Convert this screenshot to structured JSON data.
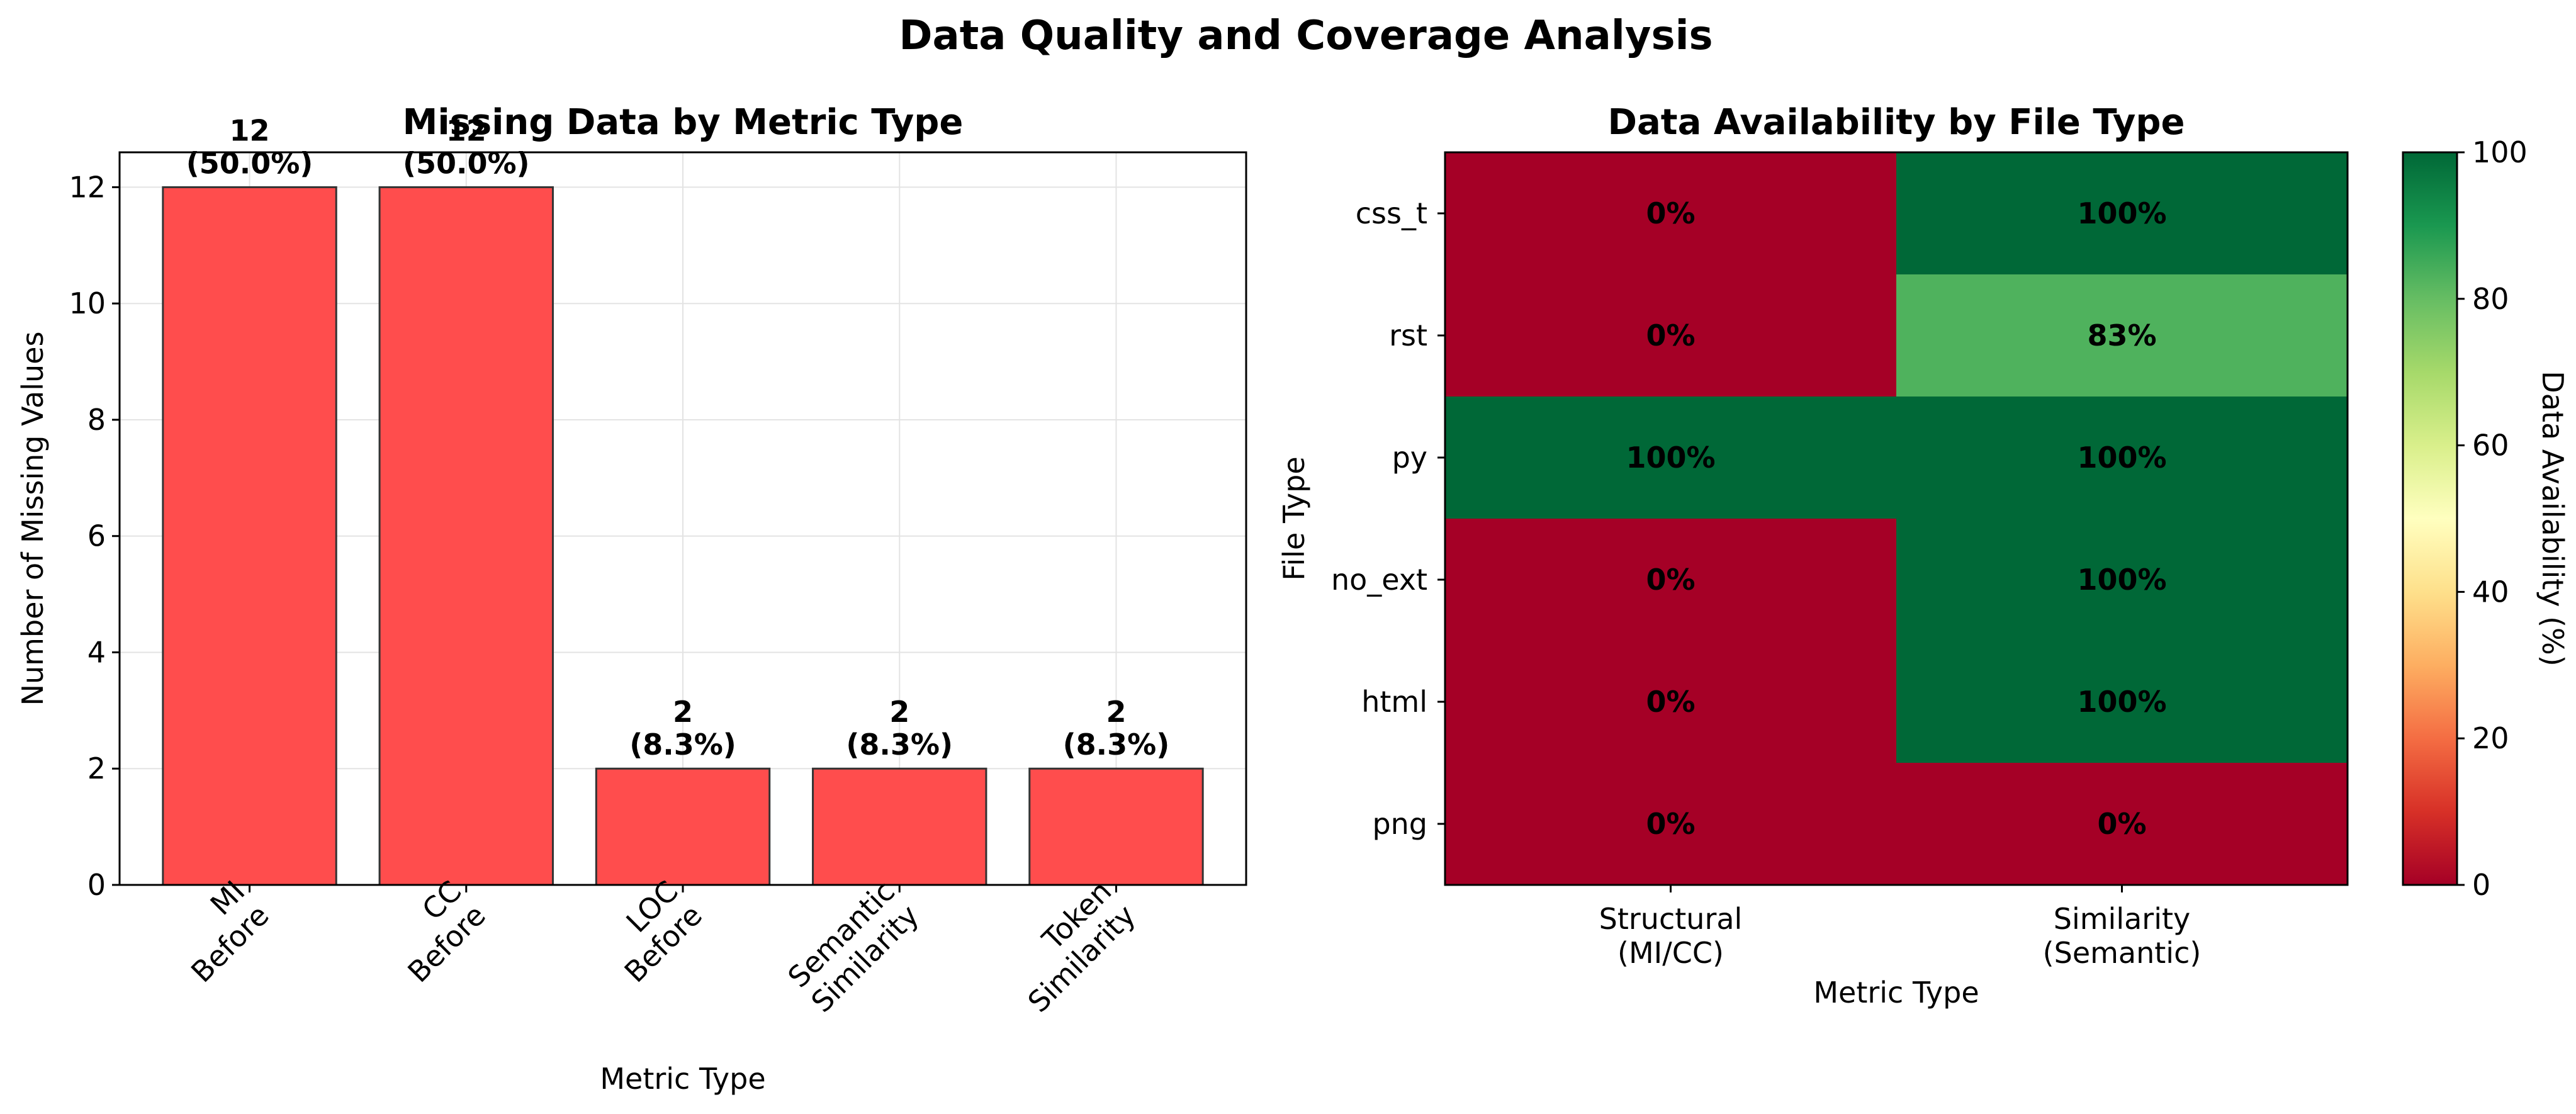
{
  "figure": {
    "title": "Data Quality and Coverage Analysis"
  },
  "chart_data": [
    {
      "type": "bar",
      "title": "Missing Data by Metric Type",
      "xlabel": "Metric Type",
      "ylabel": "Number of Missing Values",
      "categories": [
        [
          "MI",
          "Before"
        ],
        [
          "CC",
          "Before"
        ],
        [
          "LOC",
          "Before"
        ],
        [
          "Semantic",
          "Similarity"
        ],
        [
          "Token",
          "Similarity"
        ]
      ],
      "values": [
        12,
        12,
        2,
        2,
        2
      ],
      "bar_labels": [
        [
          "12",
          "(50.0%)"
        ],
        [
          "12",
          "(50.0%)"
        ],
        [
          "2",
          "(8.3%)"
        ],
        [
          "2",
          "(8.3%)"
        ],
        [
          "2",
          "(8.3%)"
        ]
      ],
      "ylim": [
        0,
        12.6
      ],
      "yticks": [
        0,
        2,
        4,
        6,
        8,
        10,
        12
      ],
      "grid": true,
      "bar_color": "#ff4d4d"
    },
    {
      "type": "heatmap",
      "title": "Data Availability by File Type",
      "xlabel": "Metric Type",
      "ylabel": "File Type",
      "rows": [
        "css_t",
        "rst",
        "py",
        "no_ext",
        "html",
        "png"
      ],
      "cols": [
        [
          "Structural",
          "(MI/CC)"
        ],
        [
          "Similarity",
          "(Semantic)"
        ]
      ],
      "values": [
        [
          0,
          100
        ],
        [
          0,
          83
        ],
        [
          100,
          100
        ],
        [
          0,
          100
        ],
        [
          0,
          100
        ],
        [
          0,
          0
        ]
      ],
      "cell_labels": [
        [
          "0%",
          "100%"
        ],
        [
          "0%",
          "83%"
        ],
        [
          "100%",
          "100%"
        ],
        [
          "0%",
          "100%"
        ],
        [
          "0%",
          "100%"
        ],
        [
          "0%",
          "0%"
        ]
      ],
      "colormap": "RdYlGn",
      "colorbar": {
        "label": "Data Availability (%)",
        "range": [
          0,
          100
        ],
        "ticks": [
          0,
          20,
          40,
          60,
          80,
          100
        ]
      }
    }
  ]
}
